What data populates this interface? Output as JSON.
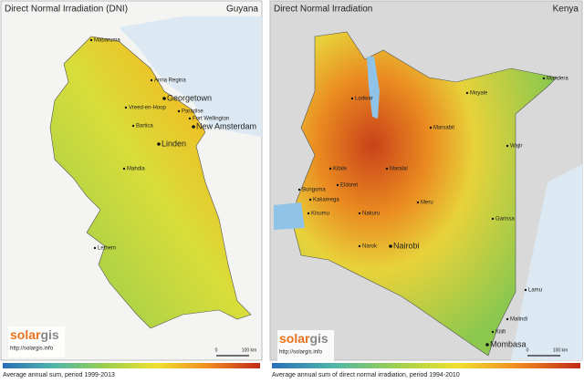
{
  "panels": [
    {
      "title": "Direct Normal Irradiation (DNI)",
      "country": "Guyana",
      "cities": [
        "Mabaruma",
        "Anna Regina",
        "Georgetown",
        "Vreed-en-Hoop",
        "Paradise",
        "Fort Wellington",
        "Bartica",
        "New Amsterdam",
        "Linden",
        "Mahdia",
        "Lethem"
      ],
      "logo_a": "solar",
      "logo_b": "gis",
      "url": "http://solargis.info",
      "legend_caption": "Average annual sum, period 1999-2013",
      "scale_start": "0",
      "scale_end": "100 km"
    },
    {
      "title": "Direct Normal Irradiation",
      "country": "Kenya",
      "cities": [
        "Lodwar",
        "Moyale",
        "Mandera",
        "Marsabit",
        "Wajir",
        "Kitale",
        "Eldoret",
        "Maralal",
        "Bungoma",
        "Kakamega",
        "Kisumu",
        "Meru",
        "Nakuru",
        "Garissa",
        "Nairobi",
        "Narok",
        "Lamu",
        "Malindi",
        "Kilifi",
        "Mombasa"
      ],
      "logo_a": "solar",
      "logo_b": "gis",
      "url": "http://solargis.info",
      "legend_caption": "Average annual sum of direct normal irradiation, period 1994-2010",
      "scale_start": "0",
      "scale_end": "100 km"
    }
  ]
}
